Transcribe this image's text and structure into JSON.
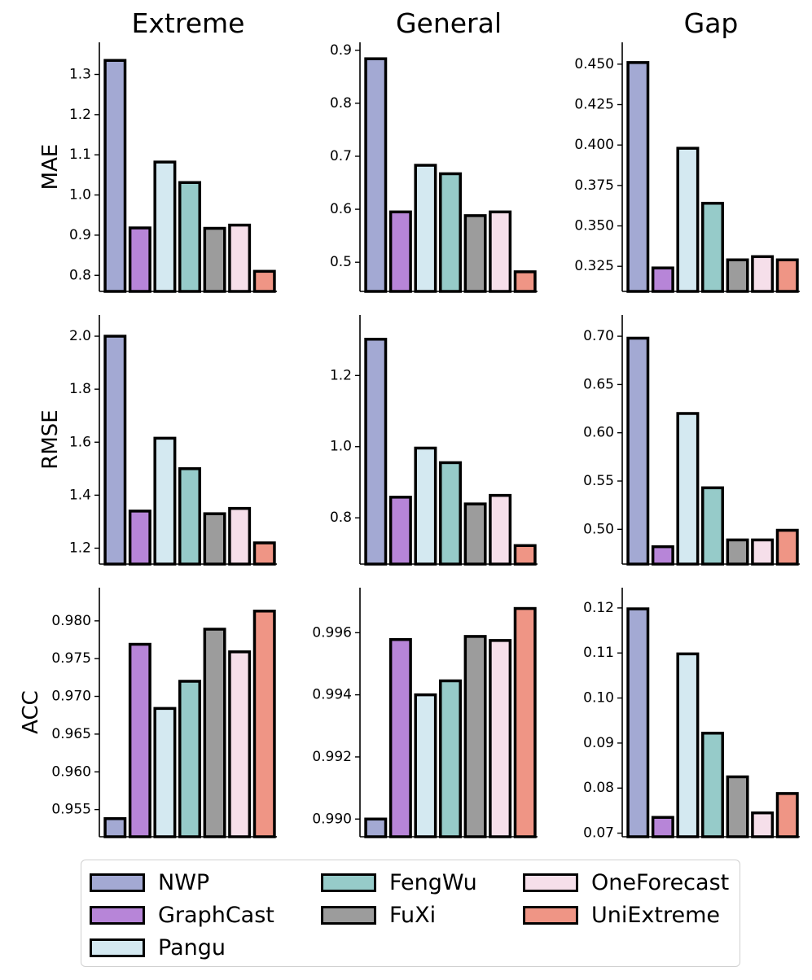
{
  "chart_data": {
    "type": "bar",
    "models": [
      "NWP",
      "GraphCast",
      "Pangu",
      "FengWu",
      "FuXi",
      "OneForecast",
      "UniExtreme"
    ],
    "colors": [
      "#a3a9d3",
      "#b785d8",
      "#d4e9f1",
      "#96cbc9",
      "#9c9c9c",
      "#f6dfea",
      "#ef9585"
    ],
    "columns": [
      "Extreme",
      "General",
      "Gap"
    ],
    "rows": [
      "MAE",
      "RMSE",
      "ACC"
    ],
    "subplots": [
      {
        "row": "MAE",
        "column": "Extreme",
        "ylim": [
          0.76,
          1.38
        ],
        "ticks": [
          0.8,
          0.9,
          1.0,
          1.1,
          1.2,
          1.3
        ],
        "tick_labels": [
          "0.8",
          "0.9",
          "1.0",
          "1.1",
          "1.2",
          "1.3"
        ],
        "values": [
          1.335,
          0.918,
          1.082,
          1.031,
          0.917,
          0.925,
          0.81
        ]
      },
      {
        "row": "MAE",
        "column": "General",
        "ylim": [
          0.445,
          0.915
        ],
        "ticks": [
          0.5,
          0.6,
          0.7,
          0.8,
          0.9
        ],
        "tick_labels": [
          "0.5",
          "0.6",
          "0.7",
          "0.8",
          "0.9"
        ],
        "values": [
          0.884,
          0.595,
          0.683,
          0.667,
          0.588,
          0.595,
          0.482
        ]
      },
      {
        "row": "MAE",
        "column": "Gap",
        "ylim": [
          0.3095,
          0.4635
        ],
        "ticks": [
          0.325,
          0.35,
          0.375,
          0.4,
          0.425,
          0.45
        ],
        "tick_labels": [
          "0.325",
          "0.350",
          "0.375",
          "0.400",
          "0.425",
          "0.450"
        ],
        "values": [
          0.451,
          0.324,
          0.398,
          0.364,
          0.329,
          0.331,
          0.329
        ]
      },
      {
        "row": "RMSE",
        "column": "Extreme",
        "ylim": [
          1.14,
          2.08
        ],
        "ticks": [
          1.2,
          1.4,
          1.6,
          1.8,
          2.0
        ],
        "tick_labels": [
          "1.2",
          "1.4",
          "1.6",
          "1.8",
          "2.0"
        ],
        "values": [
          2.0,
          1.34,
          1.615,
          1.5,
          1.33,
          1.35,
          1.22
        ]
      },
      {
        "row": "RMSE",
        "column": "General",
        "ylim": [
          0.67,
          1.37
        ],
        "ticks": [
          0.8,
          1.0,
          1.2
        ],
        "tick_labels": [
          "0.8",
          "1.0",
          "1.2"
        ],
        "values": [
          1.302,
          0.858,
          0.996,
          0.955,
          0.839,
          0.863,
          0.722
        ]
      },
      {
        "row": "RMSE",
        "column": "Gap",
        "ylim": [
          0.464,
          0.722
        ],
        "ticks": [
          0.5,
          0.55,
          0.6,
          0.65,
          0.7
        ],
        "tick_labels": [
          "0.50",
          "0.55",
          "0.60",
          "0.65",
          "0.70"
        ],
        "values": [
          0.698,
          0.482,
          0.62,
          0.543,
          0.489,
          0.489,
          0.499
        ]
      },
      {
        "row": "ACC",
        "column": "Extreme",
        "ylim": [
          0.9514,
          0.9844
        ],
        "ticks": [
          0.955,
          0.96,
          0.965,
          0.97,
          0.975,
          0.98
        ],
        "tick_labels": [
          "0.955",
          "0.960",
          "0.965",
          "0.970",
          "0.975",
          "0.980"
        ],
        "values": [
          0.9538,
          0.9769,
          0.9684,
          0.972,
          0.9789,
          0.9759,
          0.9813
        ]
      },
      {
        "row": "ACC",
        "column": "General",
        "ylim": [
          0.98943,
          0.99745
        ],
        "ticks": [
          0.99,
          0.992,
          0.994,
          0.996
        ],
        "tick_labels": [
          "0.990",
          "0.992",
          "0.994",
          "0.996"
        ],
        "values": [
          0.99,
          0.99578,
          0.994,
          0.99445,
          0.99588,
          0.99575,
          0.99678
        ]
      },
      {
        "row": "ACC",
        "column": "Gap",
        "ylim": [
          0.0692,
          0.1245
        ],
        "ticks": [
          0.07,
          0.08,
          0.09,
          0.1,
          0.11,
          0.12
        ],
        "tick_labels": [
          "0.07",
          "0.08",
          "0.09",
          "0.10",
          "0.11",
          "0.12"
        ],
        "values": [
          0.1198,
          0.0735,
          0.1098,
          0.0922,
          0.0825,
          0.0745,
          0.0788
        ]
      }
    ]
  }
}
